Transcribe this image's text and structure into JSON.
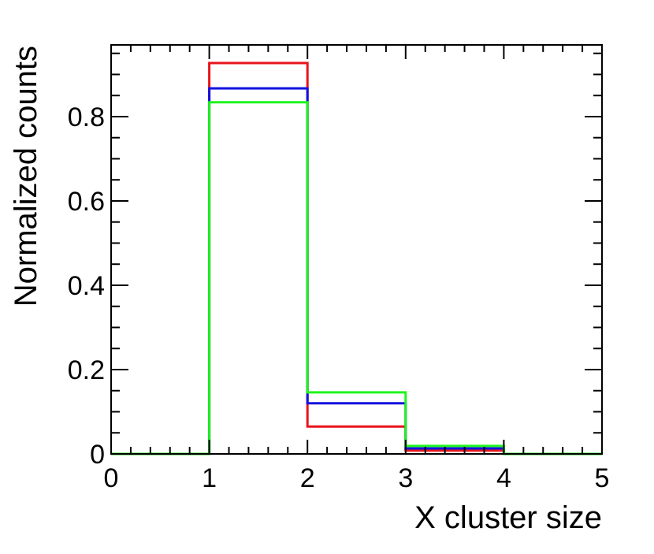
{
  "chart_data": {
    "type": "step-histogram",
    "title": "",
    "xlabel": "X cluster size",
    "ylabel": "Normalized counts",
    "xlim": [
      0,
      5
    ],
    "ylim": [
      0,
      0.97
    ],
    "grid": false,
    "x_ticks": [
      0,
      1,
      2,
      3,
      4,
      5
    ],
    "x_tick_labels": [
      "0",
      "1",
      "2",
      "3",
      "4",
      "5"
    ],
    "y_ticks": [
      0,
      0.2,
      0.4,
      0.6,
      0.8
    ],
    "y_tick_labels": [
      "0",
      "0.2",
      "0.4",
      "0.6",
      "0.8"
    ],
    "bin_edges": [
      0,
      1,
      2,
      3,
      4,
      5
    ],
    "series": [
      {
        "color": "#e8141c",
        "values": [
          0,
          0.927,
          0.065,
          0.008,
          0
        ]
      },
      {
        "color": "#1212e0",
        "values": [
          0,
          0.867,
          0.12,
          0.013,
          0
        ]
      },
      {
        "color": "#1ef51e",
        "values": [
          0,
          0.834,
          0.146,
          0.019,
          0
        ]
      }
    ]
  }
}
